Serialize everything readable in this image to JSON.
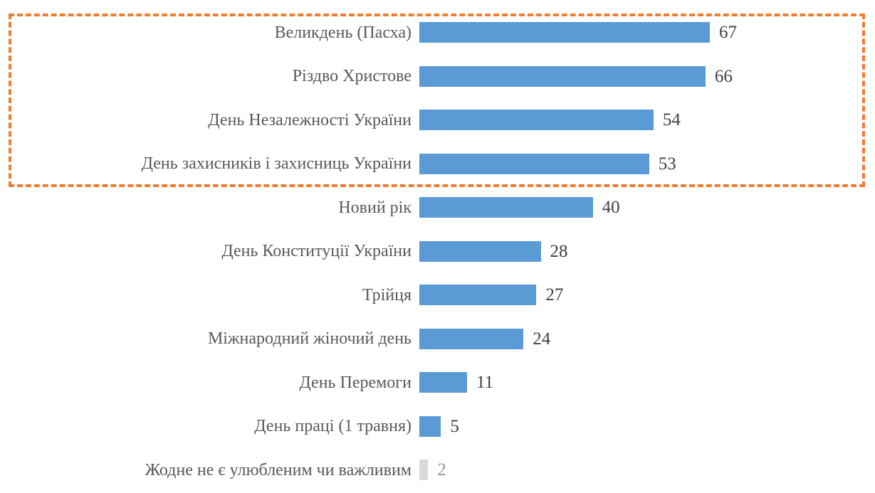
{
  "chart_data": {
    "type": "bar",
    "orientation": "horizontal",
    "title": "",
    "xlabel": "",
    "ylabel": "",
    "grid": false,
    "legend": false,
    "data_labels": true,
    "categories": [
      "Великдень (Пасха)",
      "Різдво Христове",
      "День Незалежності України",
      "День захисників і захисниць України",
      "Новий рік",
      "День Конституції України",
      "Трійця",
      "Міжнародний жіночий день",
      "День Перемоги",
      "День праці (1 травня)",
      "Жодне не є улюбленим чи важливим"
    ],
    "values": [
      67,
      66,
      54,
      53,
      40,
      28,
      27,
      24,
      11,
      5,
      2
    ],
    "colors": {
      "bar": "#5B9BD5",
      "muted_bar": "#D9D9D9",
      "category_label": "#595959",
      "value_label": "#404040",
      "muted_value_label": "#969696"
    },
    "muted_rows": [
      10
    ]
  },
  "annotations": {
    "highlight_box": {
      "description": "dashed rectangle around top four bars",
      "rows_enclosed": [
        0,
        1,
        2,
        3
      ],
      "border_color": "#ED7D31",
      "border_style": "dashed"
    }
  }
}
